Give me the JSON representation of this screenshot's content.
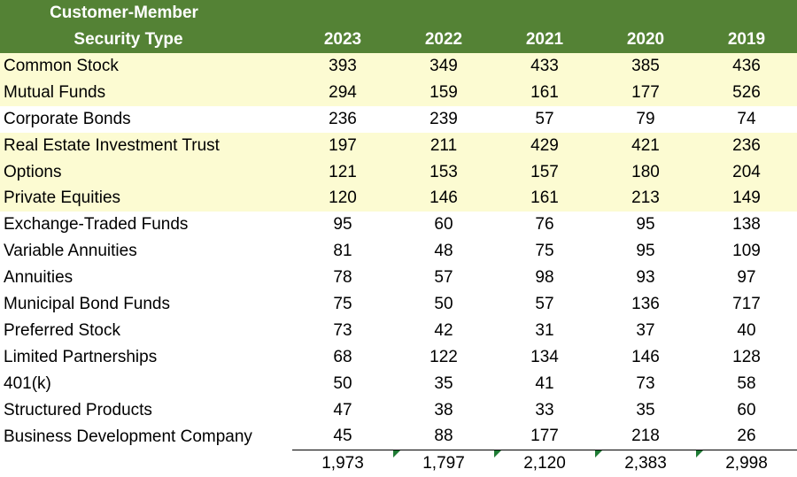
{
  "header": {
    "title_line1": "Customer-Member",
    "title_line2": "Security Type",
    "years": [
      "2023",
      "2022",
      "2021",
      "2020",
      "2019"
    ]
  },
  "rows": [
    {
      "name": "Common Stock",
      "values": [
        "393",
        "349",
        "433",
        "385",
        "436"
      ],
      "highlight": true
    },
    {
      "name": "Mutual Funds",
      "values": [
        "294",
        "159",
        "161",
        "177",
        "526"
      ],
      "highlight": true
    },
    {
      "name": "Corporate Bonds",
      "values": [
        "236",
        "239",
        "57",
        "79",
        "74"
      ],
      "highlight": false
    },
    {
      "name": "Real Estate Investment Trust",
      "values": [
        "197",
        "211",
        "429",
        "421",
        "236"
      ],
      "highlight": true
    },
    {
      "name": "Options",
      "values": [
        "121",
        "153",
        "157",
        "180",
        "204"
      ],
      "highlight": true
    },
    {
      "name": "Private Equities",
      "values": [
        "120",
        "146",
        "161",
        "213",
        "149"
      ],
      "highlight": true
    },
    {
      "name": "Exchange-Traded Funds",
      "values": [
        "95",
        "60",
        "76",
        "95",
        "138"
      ],
      "highlight": false
    },
    {
      "name": "Variable Annuities",
      "values": [
        "81",
        "48",
        "75",
        "95",
        "109"
      ],
      "highlight": false
    },
    {
      "name": "Annuities",
      "values": [
        "78",
        "57",
        "98",
        "93",
        "97"
      ],
      "highlight": false
    },
    {
      "name": "Municipal Bond Funds",
      "values": [
        "75",
        "50",
        "57",
        "136",
        "717"
      ],
      "highlight": false
    },
    {
      "name": "Preferred Stock",
      "values": [
        "73",
        "42",
        "31",
        "37",
        "40"
      ],
      "highlight": false
    },
    {
      "name": "Limited Partnerships",
      "values": [
        "68",
        "122",
        "134",
        "146",
        "128"
      ],
      "highlight": false
    },
    {
      "name": "401(k)",
      "values": [
        "50",
        "35",
        "41",
        "73",
        "58"
      ],
      "highlight": false
    },
    {
      "name": "Structured Products",
      "values": [
        "47",
        "38",
        "33",
        "35",
        "60"
      ],
      "highlight": false
    },
    {
      "name": "Business Development Company",
      "values": [
        "45",
        "88",
        "177",
        "218",
        "26"
      ],
      "highlight": false
    }
  ],
  "totals": [
    "1,973",
    "1,797",
    "2,120",
    "2,383",
    "2,998"
  ],
  "colors": {
    "header_bg": "#548235",
    "highlight_bg": "#fcfbd2",
    "error_indicator": "#1e7b34"
  }
}
